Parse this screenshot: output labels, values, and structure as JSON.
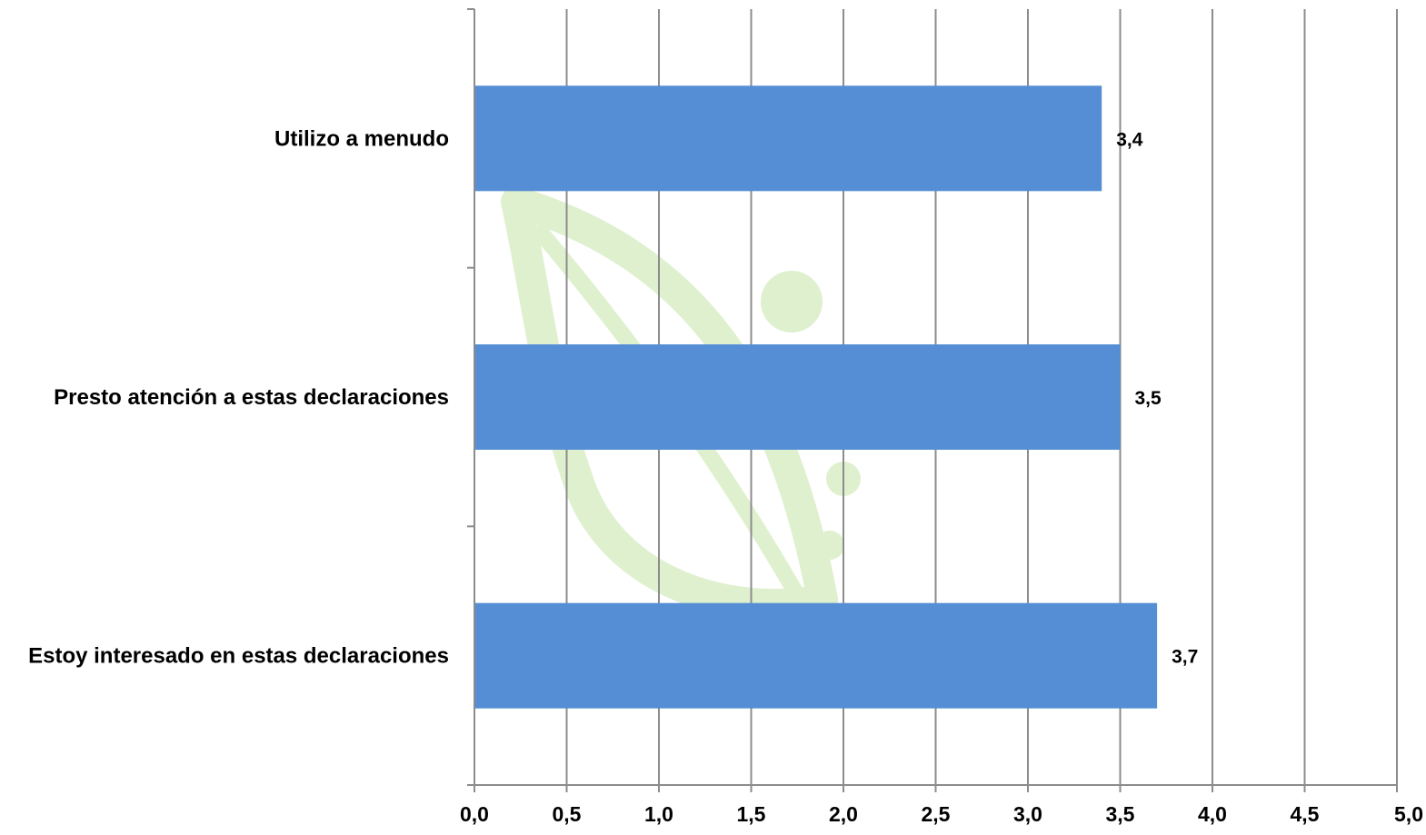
{
  "chart_data": {
    "type": "bar",
    "orientation": "horizontal",
    "categories": [
      "Utilizo a menudo",
      "Presto atención a estas declaraciones",
      "Estoy interesado en estas declaraciones"
    ],
    "values": [
      3.4,
      3.5,
      3.7
    ],
    "data_labels": [
      "3,4",
      "3,5",
      "3,7"
    ],
    "x_ticks": [
      "0,0",
      "0,5",
      "1,0",
      "1,5",
      "2,0",
      "2,5",
      "3,0",
      "3,5",
      "4,0",
      "4,5",
      "5,0"
    ],
    "xlim": [
      0,
      5
    ],
    "title": "",
    "xlabel": "",
    "ylabel": "",
    "grid": "vertical",
    "legend": "none",
    "colors": {
      "bar": "#558ED5",
      "grid": "#8c8c8c",
      "axis": "#8c8c8c",
      "watermark": "#dff0cf"
    }
  }
}
